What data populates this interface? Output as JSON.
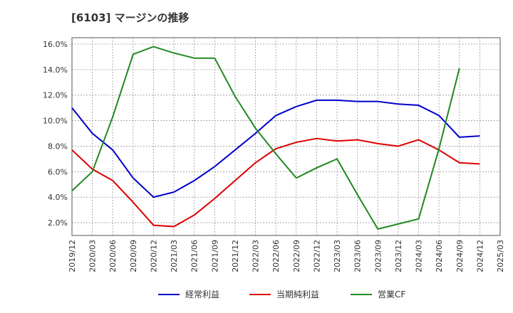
{
  "chart_data": {
    "type": "line",
    "title": "[6103]  マージンの推移",
    "xlabel": "",
    "ylabel": "",
    "x": [
      "2019/12",
      "2020/03",
      "2020/06",
      "2020/09",
      "2020/12",
      "2021/03",
      "2021/06",
      "2021/09",
      "2021/12",
      "2022/03",
      "2022/06",
      "2022/09",
      "2022/12",
      "2023/03",
      "2023/06",
      "2023/09",
      "2023/12",
      "2024/03",
      "2024/06",
      "2024/09",
      "2024/12",
      "2025/03"
    ],
    "ylim": [
      1.0,
      16.5
    ],
    "yticks": [
      2.0,
      4.0,
      6.0,
      8.0,
      10.0,
      12.0,
      14.0,
      16.0
    ],
    "ytick_labels": [
      "2.0%",
      "4.0%",
      "6.0%",
      "8.0%",
      "10.0%",
      "12.0%",
      "14.0%",
      "16.0%"
    ],
    "grid": true,
    "legend_position": "bottom",
    "series": [
      {
        "name": "経常利益",
        "color": "#0000cc",
        "values": [
          11.0,
          9.0,
          7.7,
          5.5,
          4.0,
          4.4,
          5.3,
          6.4,
          7.7,
          9.0,
          10.4,
          11.1,
          11.6,
          11.6,
          11.5,
          11.5,
          11.3,
          11.2,
          10.4,
          8.7,
          8.8,
          null
        ]
      },
      {
        "name": "当期純利益",
        "color": "#dd0000",
        "values": [
          7.7,
          6.2,
          5.3,
          3.6,
          1.8,
          1.7,
          2.6,
          3.9,
          5.3,
          6.7,
          7.8,
          8.3,
          8.6,
          8.4,
          8.5,
          8.2,
          8.0,
          8.5,
          7.7,
          6.7,
          6.6,
          null
        ]
      },
      {
        "name": "営業CF",
        "color": "#228822",
        "values": [
          4.5,
          6.0,
          10.3,
          15.2,
          15.8,
          15.3,
          14.9,
          14.9,
          11.9,
          9.4,
          7.4,
          5.5,
          6.3,
          7.0,
          4.2,
          1.5,
          1.9,
          2.3,
          7.8,
          14.1,
          null,
          null
        ]
      }
    ]
  }
}
